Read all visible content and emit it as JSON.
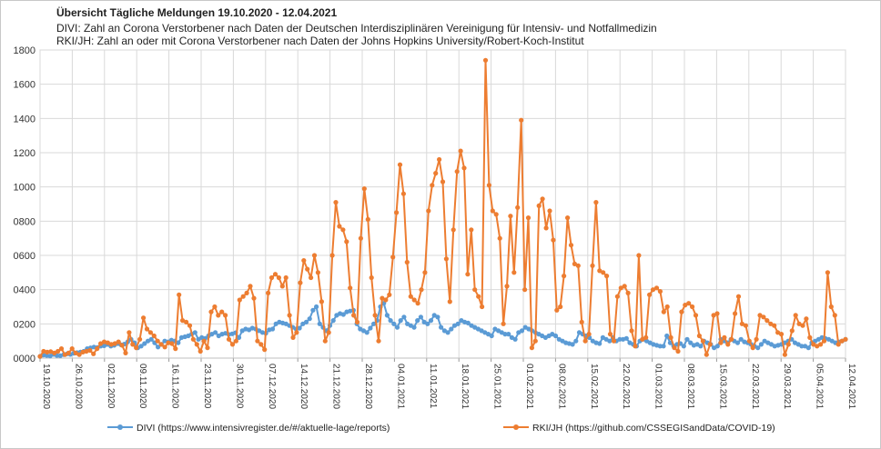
{
  "chart_data": {
    "type": "line",
    "title": "Übersicht Tägliche Meldungen 19.10.2020 - 12.04.2021",
    "subtitle_lines": [
      "DIVI: Zahl an Corona Verstorbener nach Daten der Deutschen Interdisziplinären Vereinigung für Intensiv- und Notfallmedizin",
      "RKI/JH: Zahl an oder mit Corona Verstorbener nach Daten der Johns Hopkins University/Robert-Koch-Institut"
    ],
    "ylim": [
      0,
      1800
    ],
    "yticks": [
      0,
      200,
      400,
      600,
      800,
      1000,
      1200,
      1400,
      1600,
      1800
    ],
    "ytick_labels": [
      "0000",
      "0200",
      "0400",
      "0600",
      "0800",
      "1000",
      "1200",
      "1400",
      "1600",
      "1800"
    ],
    "x_start": "19.10.2020",
    "xticks_days": [
      0,
      7,
      14,
      21,
      28,
      35,
      42,
      49,
      56,
      63,
      70,
      77,
      84,
      91,
      98,
      105,
      112,
      119,
      126,
      133,
      140,
      147,
      154,
      161,
      168,
      175
    ],
    "xtick_labels": [
      "19.10.2020",
      "26.10.2020",
      "02.11.2020",
      "09.11.2020",
      "16.11.2020",
      "23.11.2020",
      "30.11.2020",
      "07.12.2020",
      "14.12.2020",
      "21.12.2020",
      "28.12.2020",
      "04.01.2021",
      "11.01.2021",
      "18.01.2021",
      "25.01.2021",
      "01.02.2021",
      "08.02.2021",
      "15.02.2021",
      "22.02.2021",
      "01.03.2021",
      "08.03.2021",
      "15.03.2021",
      "22.03.2021",
      "29.03.2021",
      "05.04.2021",
      "12.04.2021"
    ],
    "grid": true,
    "legend_position": "bottom",
    "series": [
      {
        "name": "DIVI (https://www.intensivregister.de/#/aktuelle-lage/reports)",
        "color": "#5b9bd5",
        "values": [
          10,
          18,
          15,
          12,
          22,
          15,
          14,
          20,
          25,
          22,
          28,
          32,
          35,
          40,
          55,
          60,
          65,
          62,
          70,
          72,
          80,
          70,
          75,
          85,
          78,
          82,
          95,
          110,
          90,
          60,
          70,
          85,
          100,
          110,
          90,
          65,
          80,
          100,
          95,
          105,
          100,
          90,
          120,
          125,
          130,
          140,
          150,
          110,
          120,
          115,
          130,
          140,
          150,
          130,
          140,
          145,
          138,
          142,
          148,
          120,
          160,
          170,
          165,
          175,
          170,
          160,
          150,
          145,
          165,
          170,
          200,
          210,
          205,
          200,
          190,
          180,
          170,
          175,
          200,
          210,
          230,
          280,
          300,
          200,
          180,
          160,
          190,
          220,
          250,
          260,
          255,
          270,
          275,
          280,
          200,
          170,
          160,
          150,
          175,
          200,
          220,
          300,
          320,
          250,
          220,
          200,
          180,
          220,
          240,
          200,
          190,
          180,
          220,
          240,
          210,
          200,
          220,
          250,
          240,
          180,
          160,
          150,
          170,
          190,
          200,
          220,
          210,
          205,
          190,
          180,
          170,
          160,
          150,
          140,
          130,
          170,
          160,
          150,
          140,
          140,
          120,
          110,
          150,
          160,
          180,
          170,
          160,
          150,
          140,
          130,
          120,
          130,
          140,
          130,
          110,
          100,
          90,
          85,
          80,
          100,
          150,
          140,
          130,
          120,
          100,
          90,
          85,
          120,
          110,
          100,
          120,
          100,
          110,
          110,
          115,
          90,
          80,
          70,
          100,
          110,
          100,
          90,
          80,
          75,
          70,
          70,
          130,
          90,
          70,
          80,
          85,
          70,
          110,
          90,
          75,
          80,
          70,
          100,
          90,
          80,
          60,
          70,
          110,
          100,
          90,
          110,
          100,
          90,
          110,
          95,
          90,
          80,
          70,
          60,
          80,
          100,
          90,
          80,
          70,
          75,
          80,
          90,
          100,
          110,
          90,
          80,
          70,
          70,
          60,
          90,
          100,
          110,
          120,
          115,
          110,
          100,
          90,
          95,
          100,
          110
        ]
      },
      {
        "name": "RKI/JH (https://github.com/CSSEGISandData/COVID-19)",
        "color": "#ed7d31",
        "values": [
          10,
          40,
          35,
          38,
          30,
          40,
          55,
          20,
          30,
          55,
          30,
          20,
          35,
          40,
          45,
          25,
          55,
          85,
          95,
          90,
          80,
          85,
          95,
          75,
          30,
          150,
          80,
          60,
          110,
          235,
          170,
          150,
          130,
          100,
          80,
          65,
          90,
          85,
          55,
          370,
          220,
          210,
          190,
          110,
          80,
          40,
          100,
          60,
          270,
          300,
          250,
          270,
          250,
          110,
          80,
          100,
          340,
          360,
          380,
          420,
          350,
          100,
          80,
          50,
          380,
          470,
          490,
          470,
          420,
          470,
          250,
          120,
          150,
          440,
          570,
          520,
          470,
          600,
          500,
          330,
          100,
          150,
          600,
          910,
          770,
          750,
          680,
          410,
          250,
          210,
          700,
          990,
          810,
          470,
          250,
          100,
          350,
          340,
          370,
          590,
          850,
          1130,
          960,
          560,
          360,
          340,
          320,
          400,
          500,
          860,
          1010,
          1080,
          1160,
          1030,
          580,
          330,
          750,
          1090,
          1210,
          1110,
          490,
          750,
          400,
          360,
          300,
          1740,
          1010,
          860,
          840,
          700,
          200,
          420,
          830,
          500,
          880,
          1390,
          400,
          820,
          60,
          100,
          890,
          930,
          760,
          860,
          690,
          280,
          300,
          480,
          820,
          660,
          550,
          540,
          210,
          100,
          140,
          540,
          910,
          510,
          500,
          480,
          140,
          100,
          360,
          410,
          420,
          380,
          160,
          70,
          600,
          110,
          120,
          370,
          400,
          410,
          390,
          270,
          300,
          120,
          60,
          40,
          270,
          310,
          320,
          300,
          250,
          130,
          100,
          20,
          80,
          250,
          260,
          90,
          120,
          80,
          110,
          260,
          360,
          200,
          190,
          100,
          60,
          110,
          250,
          240,
          220,
          200,
          190,
          150,
          140,
          20,
          80,
          160,
          250,
          200,
          190,
          230,
          120,
          80,
          70,
          80,
          100,
          500,
          300,
          250,
          80,
          100,
          110
        ]
      }
    ]
  }
}
